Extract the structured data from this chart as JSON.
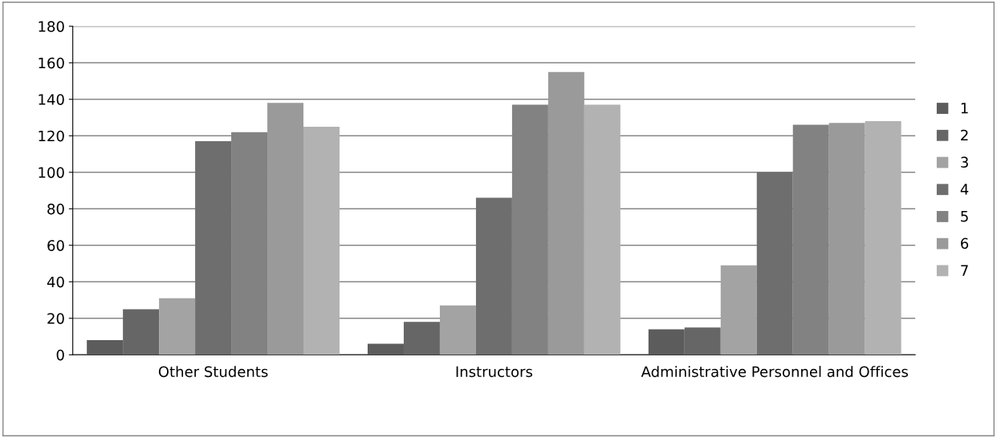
{
  "chart_data": {
    "type": "bar",
    "categories": [
      "Other Students",
      "Instructors",
      "Administrative Personnel and Offices"
    ],
    "series": [
      {
        "name": "1",
        "color": "#5c5c5c",
        "values": [
          8,
          6,
          14
        ]
      },
      {
        "name": "2",
        "color": "#666666",
        "values": [
          25,
          18,
          15
        ]
      },
      {
        "name": "3",
        "color": "#a3a3a3",
        "values": [
          31,
          27,
          49
        ]
      },
      {
        "name": "4",
        "color": "#6e6e6e",
        "values": [
          117,
          86,
          100
        ]
      },
      {
        "name": "5",
        "color": "#828282",
        "values": [
          122,
          137,
          126
        ]
      },
      {
        "name": "6",
        "color": "#9a9a9a",
        "values": [
          138,
          155,
          127
        ]
      },
      {
        "name": "7",
        "color": "#b2b2b2",
        "values": [
          125,
          137,
          128
        ]
      }
    ],
    "ylim": [
      0,
      180
    ],
    "yticks": [
      0,
      20,
      40,
      60,
      80,
      100,
      120,
      140,
      160,
      180
    ],
    "grid": "y",
    "legend": "right"
  }
}
